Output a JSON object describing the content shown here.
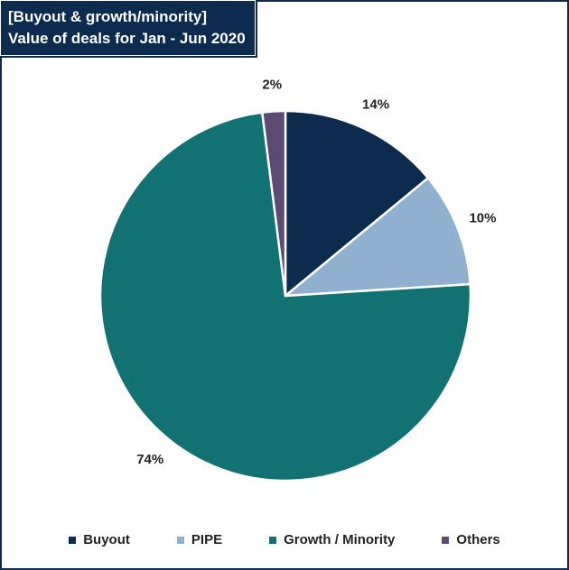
{
  "title": {
    "line1": "[Buyout & growth/minority]",
    "line2": "Value of deals for Jan - Jun 2020"
  },
  "chart_data": {
    "type": "pie",
    "categories": [
      "Buyout",
      "PIPE",
      "Growth / Minority",
      "Others"
    ],
    "values": [
      14,
      10,
      74,
      2
    ],
    "labels": [
      "14%",
      "10%",
      "74%",
      "2%"
    ],
    "colors": [
      "#0d2a4f",
      "#8fb0cf",
      "#127172",
      "#5c4a72"
    ],
    "legend_position": "bottom"
  }
}
